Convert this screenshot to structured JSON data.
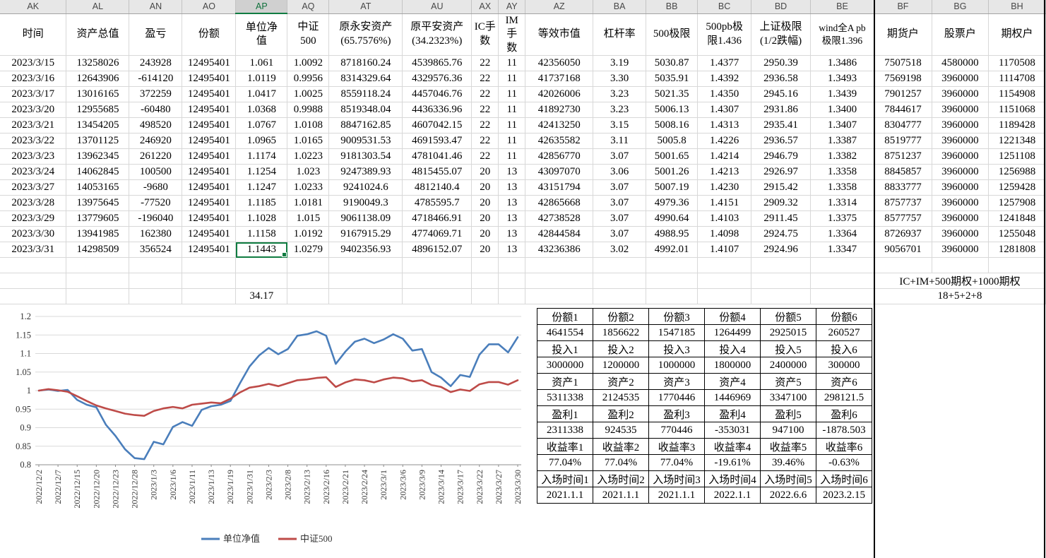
{
  "sheet": {
    "column_letters": [
      "AK",
      "AL",
      "AN",
      "AO",
      "AP",
      "AQ",
      "AT",
      "AU",
      "AX",
      "AY",
      "AZ",
      "BA",
      "BB",
      "BC",
      "BD",
      "BE",
      "BF",
      "BG",
      "BH"
    ],
    "selected_column": "AP",
    "headers": [
      "时间",
      "资产总值",
      "盈亏",
      "份额",
      "单位净\n值",
      "中证\n500",
      "原永安资产\n(65.7576%)",
      "原平安资产\n(34.2323%)",
      "IC手\n数",
      "IM手\n数",
      "等效市值",
      "杠杆率",
      "500极限",
      "500pb极\n限1.436",
      "上证极限\n(1/2跌幅)",
      "wind全A pb\n极限1.396",
      "期货户",
      "股票户",
      "期权户"
    ],
    "rows": [
      [
        "2023/3/15",
        "13258026",
        "243928",
        "12495401",
        "1.061",
        "1.0092",
        "8718160.24",
        "4539865.76",
        "22",
        "11",
        "42356050",
        "3.19",
        "5030.87",
        "1.4377",
        "2950.39",
        "1.3486",
        "7507518",
        "4580000",
        "1170508"
      ],
      [
        "2023/3/16",
        "12643906",
        "-614120",
        "12495401",
        "1.0119",
        "0.9956",
        "8314329.64",
        "4329576.36",
        "22",
        "11",
        "41737168",
        "3.30",
        "5035.91",
        "1.4392",
        "2936.58",
        "1.3493",
        "7569198",
        "3960000",
        "1114708"
      ],
      [
        "2023/3/17",
        "13016165",
        "372259",
        "12495401",
        "1.0417",
        "1.0025",
        "8559118.24",
        "4457046.76",
        "22",
        "11",
        "42026006",
        "3.23",
        "5021.35",
        "1.4350",
        "2945.16",
        "1.3439",
        "7901257",
        "3960000",
        "1154908"
      ],
      [
        "2023/3/20",
        "12955685",
        "-60480",
        "12495401",
        "1.0368",
        "0.9988",
        "8519348.04",
        "4436336.96",
        "22",
        "11",
        "41892730",
        "3.23",
        "5006.13",
        "1.4307",
        "2931.86",
        "1.3400",
        "7844617",
        "3960000",
        "1151068"
      ],
      [
        "2023/3/21",
        "13454205",
        "498520",
        "12495401",
        "1.0767",
        "1.0108",
        "8847162.85",
        "4607042.15",
        "22",
        "11",
        "42413250",
        "3.15",
        "5008.16",
        "1.4313",
        "2935.41",
        "1.3407",
        "8304777",
        "3960000",
        "1189428"
      ],
      [
        "2023/3/22",
        "13701125",
        "246920",
        "12495401",
        "1.0965",
        "1.0165",
        "9009531.53",
        "4691593.47",
        "22",
        "11",
        "42635582",
        "3.11",
        "5005.8",
        "1.4226",
        "2936.57",
        "1.3387",
        "8519777",
        "3960000",
        "1221348"
      ],
      [
        "2023/3/23",
        "13962345",
        "261220",
        "12495401",
        "1.1174",
        "1.0223",
        "9181303.54",
        "4781041.46",
        "22",
        "11",
        "42856770",
        "3.07",
        "5001.65",
        "1.4214",
        "2946.79",
        "1.3382",
        "8751237",
        "3960000",
        "1251108"
      ],
      [
        "2023/3/24",
        "14062845",
        "100500",
        "12495401",
        "1.1254",
        "1.023",
        "9247389.93",
        "4815455.07",
        "20",
        "13",
        "43097070",
        "3.06",
        "5001.26",
        "1.4213",
        "2926.97",
        "1.3358",
        "8845857",
        "3960000",
        "1256988"
      ],
      [
        "2023/3/27",
        "14053165",
        "-9680",
        "12495401",
        "1.1247",
        "1.0233",
        "9241024.6",
        "4812140.4",
        "20",
        "13",
        "43151794",
        "3.07",
        "5007.19",
        "1.4230",
        "2915.42",
        "1.3358",
        "8833777",
        "3960000",
        "1259428"
      ],
      [
        "2023/3/28",
        "13975645",
        "-77520",
        "12495401",
        "1.1185",
        "1.0181",
        "9190049.3",
        "4785595.7",
        "20",
        "13",
        "42865668",
        "3.07",
        "4979.36",
        "1.4151",
        "2909.32",
        "1.3314",
        "8757737",
        "3960000",
        "1257908"
      ],
      [
        "2023/3/29",
        "13779605",
        "-196040",
        "12495401",
        "1.1028",
        "1.015",
        "9061138.09",
        "4718466.91",
        "20",
        "13",
        "42738528",
        "3.07",
        "4990.64",
        "1.4103",
        "2911.45",
        "1.3375",
        "8577757",
        "3960000",
        "1241848"
      ],
      [
        "2023/3/30",
        "13941985",
        "162380",
        "12495401",
        "1.1158",
        "1.0192",
        "9167915.29",
        "4774069.71",
        "20",
        "13",
        "42844584",
        "3.07",
        "4988.95",
        "1.4098",
        "2924.75",
        "1.3364",
        "8726937",
        "3960000",
        "1255048"
      ],
      [
        "2023/3/31",
        "14298509",
        "356524",
        "12495401",
        "1.1443",
        "1.0279",
        "9402356.93",
        "4896152.07",
        "20",
        "13",
        "43236386",
        "3.02",
        "4992.01",
        "1.4107",
        "2924.96",
        "1.3347",
        "9056701",
        "3960000",
        "1281808"
      ]
    ],
    "active_cell": {
      "row": 12,
      "col": 4,
      "value": "1.1443"
    },
    "footer": {
      "ap_note": "34.17",
      "right_note_line1": "IC+IM+500期权+1000期权",
      "right_note_line2": "18+5+2+8"
    }
  },
  "chart_data": {
    "type": "line",
    "title": "",
    "xlabel": "",
    "ylabel": "",
    "ylim": [
      0.8,
      1.2
    ],
    "grid": true,
    "legend_position": "bottom",
    "y_ticks": [
      "0.8",
      "0.85",
      "0.9",
      "0.95",
      "1",
      "1.05",
      "1.1",
      "1.15",
      "1.2"
    ],
    "x_labels": [
      "2022/12/2",
      "2022/12/7",
      "2022/12/15",
      "2022/12/20",
      "2022/12/23",
      "2022/12/28",
      "2023/1/3",
      "2023/1/6",
      "2023/1/11",
      "2023/1/13",
      "2023/1/19",
      "2023/1/31",
      "2023/2/3",
      "2023/2/8",
      "2023/2/13",
      "2023/2/16",
      "2023/2/21",
      "2023/2/24",
      "2023/3/1",
      "2023/3/6",
      "2023/3/9",
      "2023/3/14",
      "2023/3/17",
      "2023/3/22",
      "2023/3/27",
      "2023/3/30"
    ],
    "points_per_label": 2,
    "series": [
      {
        "name": "单位净值",
        "color": "#4a7ebb",
        "values": [
          1,
          1.003,
          0.999,
          1.002,
          0.975,
          0.962,
          0.955,
          0.908,
          0.878,
          0.842,
          0.818,
          0.815,
          0.862,
          0.855,
          0.902,
          0.915,
          0.905,
          0.948,
          0.958,
          0.962,
          0.972,
          1.02,
          1.065,
          1.095,
          1.115,
          1.098,
          1.112,
          1.148,
          1.152,
          1.16,
          1.148,
          1.072,
          1.105,
          1.132,
          1.14,
          1.128,
          1.138,
          1.152,
          1.14,
          1.108,
          1.112,
          1.05,
          1.035,
          1.012,
          1.042,
          1.037,
          1.097,
          1.125,
          1.125,
          1.103,
          1.144
        ]
      },
      {
        "name": "中证500",
        "color": "#be4b48",
        "values": [
          1,
          1.004,
          1.001,
          0.997,
          0.985,
          0.972,
          0.96,
          0.952,
          0.945,
          0.938,
          0.934,
          0.932,
          0.945,
          0.952,
          0.956,
          0.952,
          0.962,
          0.965,
          0.968,
          0.966,
          0.978,
          0.995,
          1.008,
          1.012,
          1.018,
          1.012,
          1.02,
          1.028,
          1.03,
          1.034,
          1.036,
          1.01,
          1.022,
          1.03,
          1.028,
          1.022,
          1.03,
          1.035,
          1.033,
          1.025,
          1.028,
          1.015,
          1.01,
          0.996,
          1.003,
          0.999,
          1.017,
          1.023,
          1.023,
          1.016,
          1.028
        ]
      }
    ]
  },
  "summary_table": {
    "rows": [
      [
        "份额1",
        "份额2",
        "份额3",
        "份额4",
        "份额5",
        "份额6"
      ],
      [
        "4641554",
        "1856622",
        "1547185",
        "1264499",
        "2925015",
        "260527"
      ],
      [
        "投入1",
        "投入2",
        "投入3",
        "投入4",
        "投入5",
        "投入6"
      ],
      [
        "3000000",
        "1200000",
        "1000000",
        "1800000",
        "2400000",
        "300000"
      ],
      [
        "资产1",
        "资产2",
        "资产3",
        "资产4",
        "资产5",
        "资产6"
      ],
      [
        "5311338",
        "2124535",
        "1770446",
        "1446969",
        "3347100",
        "298121.5"
      ],
      [
        "盈利1",
        "盈利2",
        "盈利3",
        "盈利4",
        "盈利5",
        "盈利6"
      ],
      [
        "2311338",
        "924535",
        "770446",
        "-353031",
        "947100",
        "-1878.503"
      ],
      [
        "收益率1",
        "收益率2",
        "收益率3",
        "收益率4",
        "收益率5",
        "收益率6"
      ],
      [
        "77.04%",
        "77.04%",
        "77.04%",
        "-19.61%",
        "39.46%",
        "-0.63%"
      ],
      [
        "入场时间1",
        "入场时间2",
        "入场时间3",
        "入场时间4",
        "入场时间5",
        "入场时间6"
      ],
      [
        "2021.1.1",
        "2021.1.1",
        "2021.1.1",
        "2022.1.1",
        "2022.6.6",
        "2023.2.15"
      ]
    ]
  }
}
